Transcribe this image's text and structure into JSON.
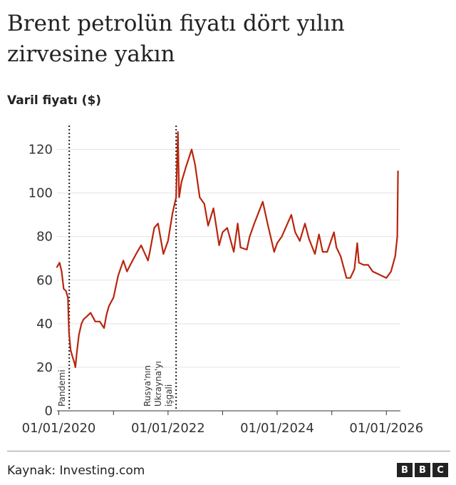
{
  "header": {
    "title": "Brent petrolün fiyatı dört yılın zirvesine yakın",
    "unit_label": "Varil fiyatı ($)"
  },
  "footer": {
    "source": "Kaynak: Investing.com",
    "logo_letters": [
      "B",
      "B",
      "C"
    ]
  },
  "chart_data": {
    "type": "line",
    "title": "Brent petrolün fiyatı dört yılın zirvesine yakın",
    "ylabel": "Varil fiyatı ($)",
    "xlabel": "",
    "ylim": [
      0,
      130
    ],
    "xlim": [
      "2019-12-20",
      "2026-04-05"
    ],
    "yticks": [
      0,
      20,
      40,
      60,
      80,
      100,
      120
    ],
    "xticks": [
      {
        "date": "2020-01-01",
        "label": "01/01/2020"
      },
      {
        "date": "2021-01-01",
        "label": ""
      },
      {
        "date": "2022-01-01",
        "label": "01/01/2022"
      },
      {
        "date": "2023-01-01",
        "label": ""
      },
      {
        "date": "2024-01-01",
        "label": "01/01/2024"
      },
      {
        "date": "2025-01-01",
        "label": ""
      },
      {
        "date": "2026-01-01",
        "label": "01/01/2026"
      }
    ],
    "grid": true,
    "legend": "none",
    "series_color": "#b8260e",
    "annotations": [
      {
        "date": "2020-03-11",
        "lines": [
          "Pandemi"
        ]
      },
      {
        "date": "2022-02-24",
        "lines": [
          "Rusya'nın",
          "Ukrayna'yı",
          "işgali"
        ]
      }
    ],
    "series": [
      {
        "x": [
          "2019-12-20",
          "2020-01-06",
          "2020-01-20",
          "2020-02-03",
          "2020-02-18",
          "2020-03-02",
          "2020-03-09",
          "2020-03-20",
          "2020-04-01",
          "2020-04-15",
          "2020-04-21",
          "2020-05-01",
          "2020-05-15",
          "2020-06-01",
          "2020-06-15",
          "2020-07-01",
          "2020-08-01",
          "2020-09-01",
          "2020-10-01",
          "2020-10-30",
          "2020-11-15",
          "2020-12-01",
          "2021-01-01",
          "2021-02-01",
          "2021-03-08",
          "2021-04-01",
          "2021-05-01",
          "2021-06-01",
          "2021-07-05",
          "2021-08-20",
          "2021-09-01",
          "2021-10-01",
          "2021-10-26",
          "2021-12-01",
          "2022-01-01",
          "2022-02-01",
          "2022-02-24",
          "2022-03-08",
          "2022-03-16",
          "2022-04-01",
          "2022-05-01",
          "2022-06-08",
          "2022-07-01",
          "2022-08-01",
          "2022-09-01",
          "2022-09-26",
          "2022-11-01",
          "2022-12-09",
          "2023-01-01",
          "2023-02-01",
          "2023-03-17",
          "2023-04-12",
          "2023-05-01",
          "2023-06-12",
          "2023-07-01",
          "2023-08-01",
          "2023-09-27",
          "2023-11-01",
          "2023-12-12",
          "2024-01-01",
          "2024-02-01",
          "2024-04-05",
          "2024-05-01",
          "2024-06-01",
          "2024-07-05",
          "2024-08-01",
          "2024-09-10",
          "2024-10-07",
          "2024-11-01",
          "2024-12-01",
          "2025-01-15",
          "2025-02-01",
          "2025-03-01",
          "2025-04-09",
          "2025-05-05",
          "2025-06-01",
          "2025-06-20",
          "2025-07-01",
          "2025-08-01",
          "2025-09-01",
          "2025-10-01",
          "2025-11-01",
          "2025-12-01",
          "2026-01-01",
          "2026-02-01",
          "2026-03-01",
          "2026-03-15",
          "2026-03-20"
        ],
        "values": [
          66,
          68,
          64,
          56,
          55,
          52,
          36,
          28,
          25,
          22,
          20,
          27,
          35,
          40,
          42,
          43,
          45,
          41,
          41,
          38,
          44,
          48,
          52,
          62,
          69,
          64,
          68,
          72,
          76,
          69,
          73,
          84,
          86,
          72,
          78,
          91,
          98,
          128,
          98,
          105,
          112,
          120,
          113,
          98,
          95,
          85,
          93,
          76,
          82,
          84,
          73,
          86,
          75,
          74,
          80,
          86,
          96,
          85,
          73,
          77,
          80,
          90,
          82,
          78,
          86,
          79,
          72,
          81,
          73,
          73,
          82,
          75,
          71,
          61,
          61,
          65,
          77,
          68,
          67,
          67,
          64,
          63,
          62,
          61,
          64,
          71,
          80,
          110
        ]
      }
    ]
  }
}
